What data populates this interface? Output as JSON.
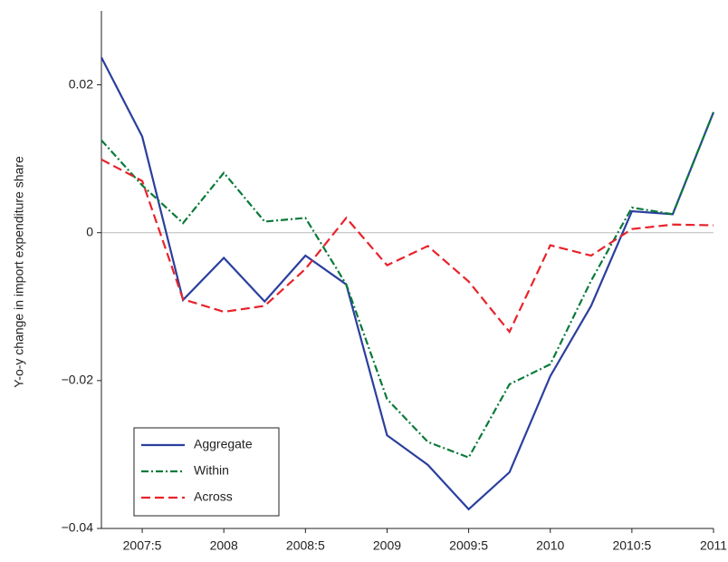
{
  "chart_data": {
    "type": "line",
    "y_label": "Y-o-y change in import expenditure share",
    "x": [
      2007.25,
      2007.5,
      2007.75,
      2008,
      2008.25,
      2008.5,
      2008.75,
      2009,
      2009.25,
      2009.5,
      2009.75,
      2010,
      2010.25,
      2010.5,
      2010.75,
      2011
    ],
    "series": [
      {
        "name": "Aggregate",
        "color": "#2b3f9e",
        "dash": "none",
        "values": [
          0.0237,
          0.013,
          -0.0091,
          -0.0034,
          -0.0093,
          -0.0031,
          -0.007,
          -0.0274,
          -0.0314,
          -0.0374,
          -0.0324,
          -0.0194,
          -0.0099,
          0.0029,
          0.0025,
          0.0163
        ]
      },
      {
        "name": "Within",
        "color": "#0a7a3a",
        "dash": "8,3,2,3",
        "values": [
          0.0125,
          0.0064,
          0.0013,
          0.0081,
          0.0015,
          0.002,
          -0.007,
          -0.0225,
          -0.0283,
          -0.0304,
          -0.0205,
          -0.0178,
          -0.0065,
          0.0034,
          0.0025,
          0.0163
        ]
      },
      {
        "name": "Across",
        "color": "#e8232a",
        "dash": "10,5",
        "values": [
          0.0099,
          0.007,
          -0.009,
          -0.0107,
          -0.0099,
          -0.0049,
          0.002,
          -0.0044,
          -0.0018,
          -0.0066,
          -0.0134,
          -0.0017,
          -0.0031,
          0.0005,
          0.0011,
          0.001
        ]
      }
    ],
    "xlim": [
      2007.25,
      2011
    ],
    "xticks": [
      {
        "value": 2007.5,
        "label": "2007:5"
      },
      2008,
      {
        "value": 2008.5,
        "label": "2008:5"
      },
      2009,
      {
        "value": 2009.5,
        "label": "2009:5"
      },
      2010,
      {
        "value": 2010.5,
        "label": "2010:5"
      },
      2011
    ],
    "ylim": [
      -0.04,
      0.03
    ],
    "yticks": [
      {
        "value": -0.04,
        "label": "−0.04"
      },
      {
        "value": -0.02,
        "label": "−0.02"
      },
      0,
      0.02
    ],
    "zero_line": true,
    "legend": "lower left"
  }
}
